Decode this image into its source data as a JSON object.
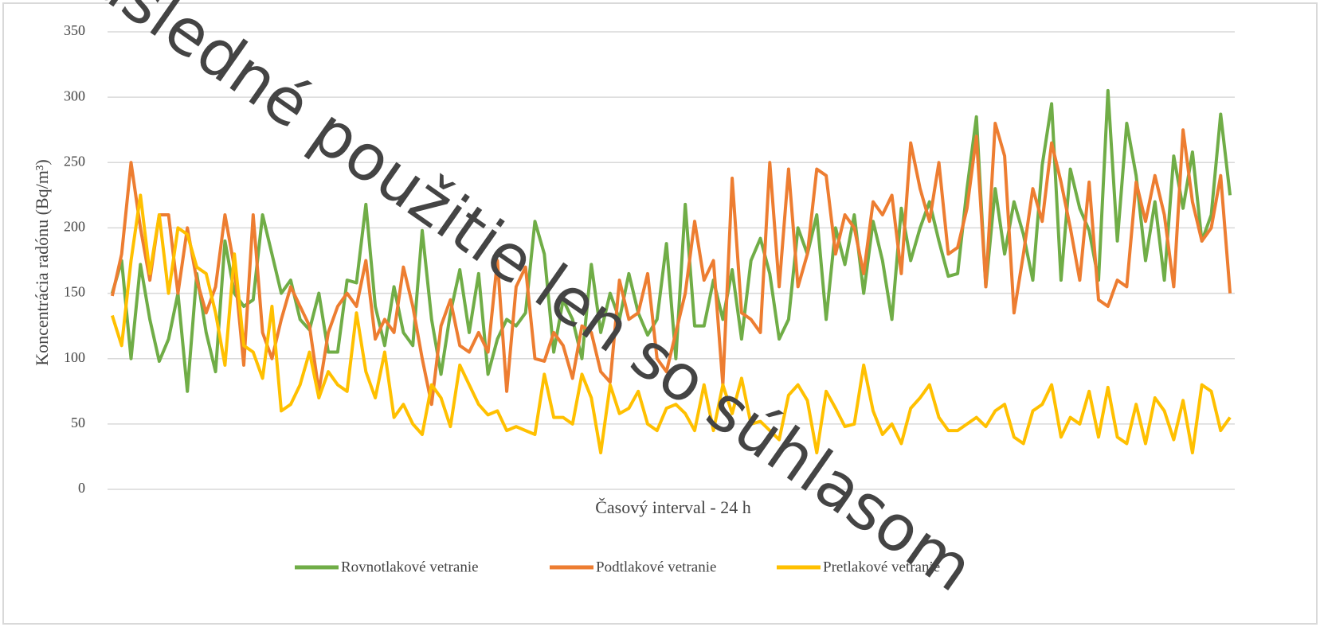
{
  "chart_data": {
    "type": "line",
    "y_label": "Koncentrácia radónu (Bq/m³)",
    "x_label": "Časový interval - 24 h",
    "watermark": "Následné použitie len so súhlasom",
    "ylim": [
      0,
      350
    ],
    "yticks": [
      0,
      50,
      100,
      150,
      200,
      250,
      300,
      350
    ],
    "grid": true,
    "legend": "bottom",
    "series": [
      {
        "name": "Rovnotlakové vetranie",
        "color": "#70ad47",
        "values": [
          150,
          175,
          100,
          172,
          130,
          98,
          115,
          150,
          75,
          165,
          120,
          90,
          190,
          150,
          140,
          145,
          210,
          180,
          150,
          160,
          130,
          122,
          150,
          105,
          105,
          160,
          158,
          218,
          140,
          110,
          155,
          120,
          110,
          198,
          130,
          88,
          135,
          168,
          120,
          165,
          88,
          115,
          130,
          125,
          135,
          205,
          180,
          105,
          145,
          130,
          100,
          172,
          120,
          150,
          130,
          165,
          135,
          118,
          130,
          188,
          100,
          218,
          125,
          125,
          160,
          130,
          168,
          115,
          175,
          192,
          165,
          115,
          130,
          200,
          180,
          210,
          130,
          200,
          172,
          210,
          150,
          205,
          175,
          130,
          215,
          175,
          200,
          220,
          190,
          163,
          165,
          230,
          285,
          155,
          230,
          180,
          220,
          195,
          160,
          248,
          295,
          160,
          245,
          215,
          198,
          160,
          305,
          190,
          280,
          240,
          175,
          220,
          160,
          255,
          215,
          258,
          190,
          210,
          287,
          225
        ]
      },
      {
        "name": "Podtlakové vetranie",
        "color": "#ed7d31",
        "values": [
          148,
          180,
          250,
          200,
          160,
          210,
          210,
          150,
          200,
          160,
          135,
          155,
          210,
          170,
          95,
          210,
          120,
          100,
          130,
          155,
          140,
          125,
          75,
          120,
          140,
          150,
          140,
          175,
          115,
          130,
          120,
          170,
          140,
          100,
          65,
          125,
          145,
          110,
          105,
          120,
          105,
          175,
          75,
          155,
          170,
          100,
          98,
          120,
          110,
          85,
          125,
          120,
          90,
          82,
          160,
          130,
          135,
          165,
          100,
          90,
          120,
          150,
          205,
          160,
          175,
          80,
          238,
          135,
          130,
          120,
          250,
          155,
          245,
          155,
          180,
          245,
          240,
          180,
          210,
          200,
          165,
          220,
          210,
          225,
          165,
          265,
          230,
          205,
          250,
          180,
          185,
          215,
          270,
          155,
          280,
          255,
          135,
          180,
          230,
          205,
          265,
          235,
          200,
          160,
          235,
          145,
          140,
          160,
          155,
          235,
          205,
          240,
          210,
          155,
          275,
          220,
          190,
          200,
          240,
          150
        ]
      },
      {
        "name": "Pretlakové vetranie",
        "color": "#ffc000",
        "values": [
          133,
          110,
          175,
          225,
          165,
          210,
          150,
          200,
          195,
          170,
          165,
          135,
          95,
          180,
          110,
          105,
          85,
          140,
          60,
          65,
          80,
          105,
          70,
          90,
          80,
          75,
          135,
          90,
          70,
          105,
          55,
          65,
          50,
          42,
          80,
          70,
          48,
          95,
          80,
          65,
          57,
          60,
          45,
          48,
          45,
          42,
          88,
          55,
          55,
          50,
          88,
          70,
          28,
          80,
          58,
          62,
          75,
          50,
          45,
          62,
          65,
          58,
          45,
          80,
          45,
          80,
          58,
          85,
          50,
          52,
          45,
          38,
          72,
          80,
          68,
          28,
          75,
          62,
          48,
          50,
          95,
          60,
          42,
          50,
          35,
          62,
          70,
          80,
          55,
          45,
          45,
          50,
          55,
          48,
          60,
          65,
          40,
          35,
          60,
          65,
          80,
          40,
          55,
          50,
          75,
          40,
          78,
          40,
          35,
          65,
          35,
          70,
          60,
          38,
          68,
          28,
          80,
          75,
          45,
          55
        ]
      }
    ]
  }
}
